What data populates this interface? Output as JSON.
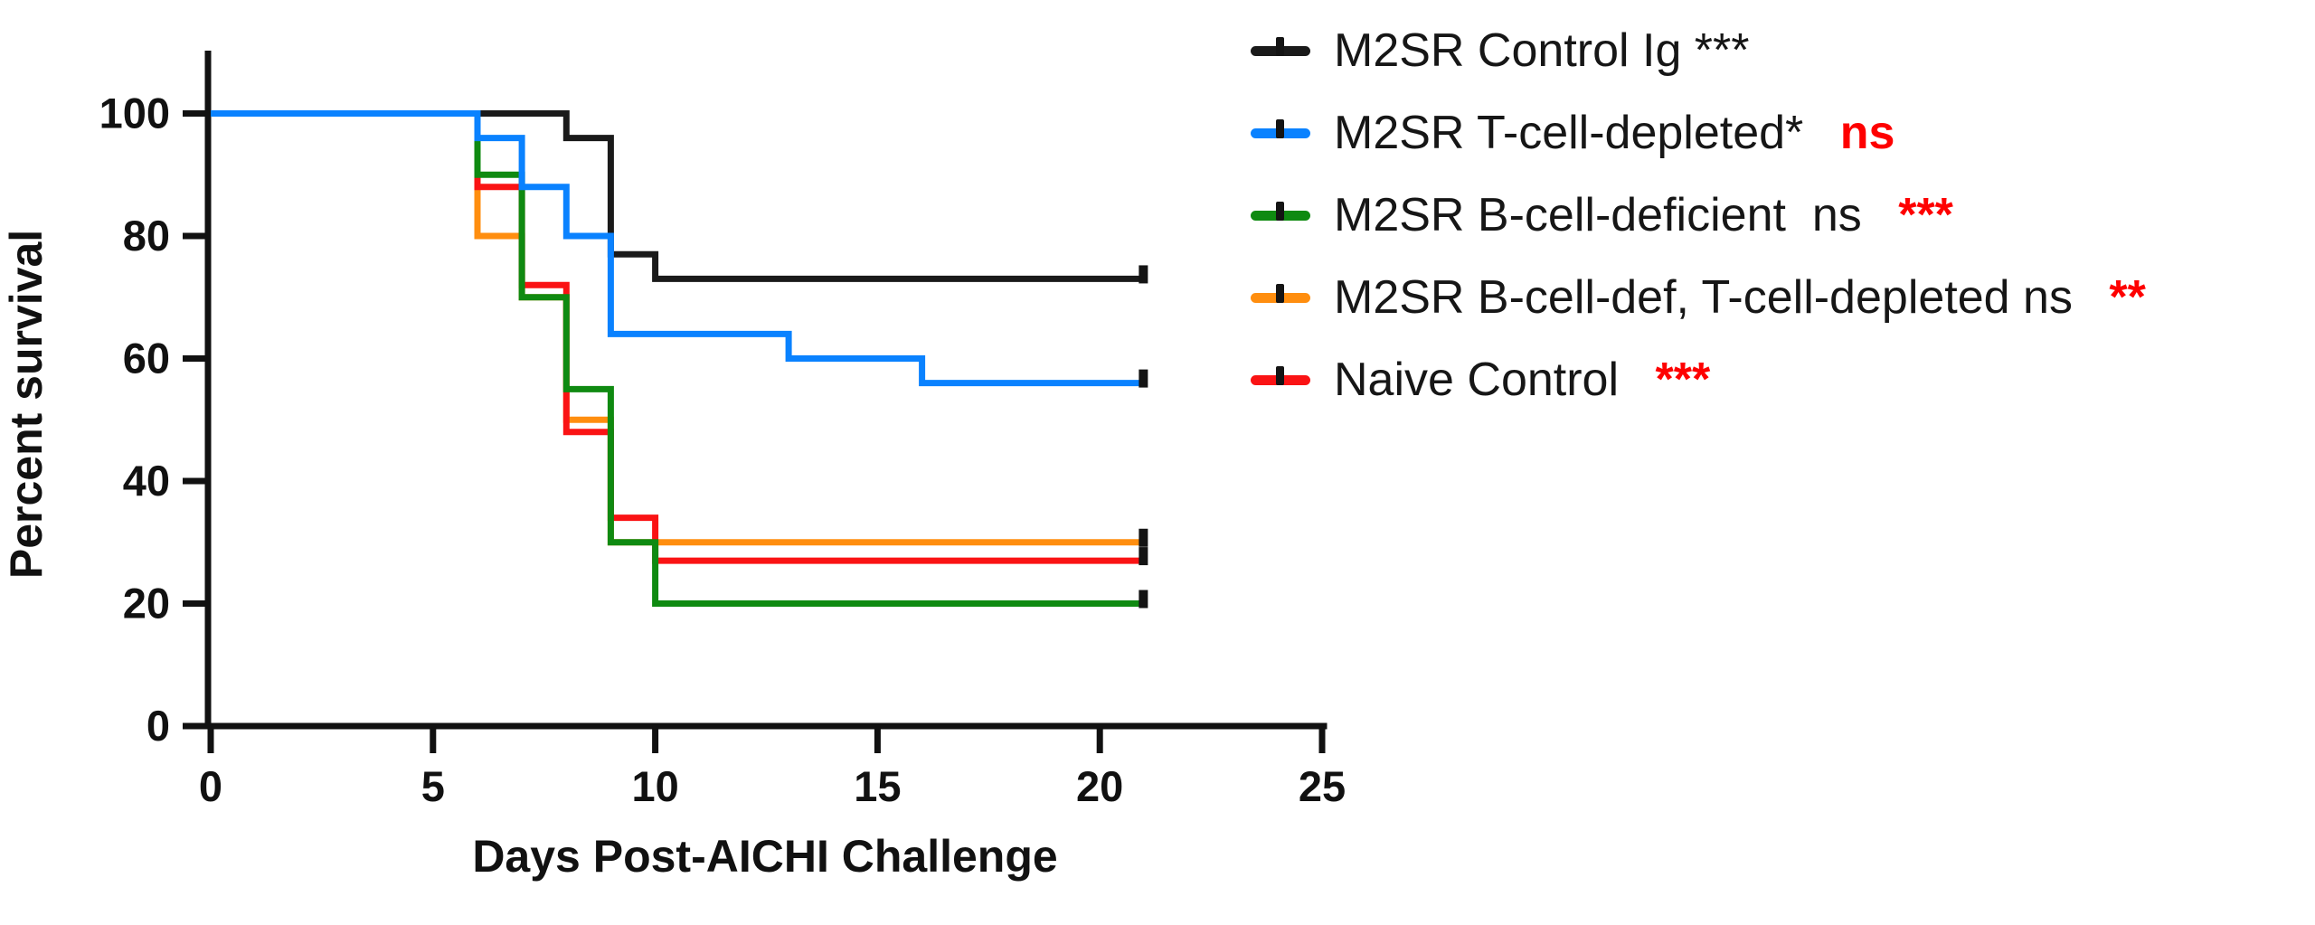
{
  "chart_data": {
    "type": "line",
    "subtype": "kaplan-meier-step-survival",
    "title": "",
    "xlabel": "Days Post-AICHI Challenge",
    "ylabel": "Percent survival",
    "xlim": [
      0,
      25
    ],
    "ylim": [
      0,
      100
    ],
    "xticks": [
      0,
      5,
      10,
      15,
      20,
      25
    ],
    "yticks": [
      0,
      20,
      40,
      60,
      80,
      100
    ],
    "grid": false,
    "legend_position": "top-right",
    "series": [
      {
        "name": "M2SR Control Ig",
        "color": "#1a1a1a",
        "censor_day": 21,
        "points": [
          [
            0,
            100
          ],
          [
            8,
            100
          ],
          [
            8,
            96
          ],
          [
            9,
            96
          ],
          [
            9,
            77
          ],
          [
            10,
            77
          ],
          [
            10,
            73
          ],
          [
            21,
            73
          ]
        ]
      },
      {
        "name": "M2SR T-cell-depleted",
        "color": "#0a82ff",
        "censor_day": 21,
        "points": [
          [
            0,
            100
          ],
          [
            6,
            100
          ],
          [
            6,
            96
          ],
          [
            7,
            96
          ],
          [
            7,
            88
          ],
          [
            8,
            88
          ],
          [
            8,
            80
          ],
          [
            9,
            80
          ],
          [
            9,
            64
          ],
          [
            13,
            64
          ],
          [
            13,
            60
          ],
          [
            16,
            60
          ],
          [
            16,
            56
          ],
          [
            21,
            56
          ]
        ]
      },
      {
        "name": "M2SR B-cell-deficient",
        "color": "#0f8a11",
        "censor_day": 21,
        "points": [
          [
            0,
            100
          ],
          [
            6,
            100
          ],
          [
            6,
            90
          ],
          [
            7,
            90
          ],
          [
            7,
            70
          ],
          [
            8,
            70
          ],
          [
            8,
            55
          ],
          [
            9,
            55
          ],
          [
            9,
            30
          ],
          [
            10,
            30
          ],
          [
            10,
            20
          ],
          [
            21,
            20
          ]
        ]
      },
      {
        "name": "M2SR B-cell-def, T-cell-depleted",
        "color": "#ff8e0f",
        "censor_day": 21,
        "points": [
          [
            0,
            100
          ],
          [
            6,
            100
          ],
          [
            6,
            80
          ],
          [
            7,
            80
          ],
          [
            7,
            70
          ],
          [
            8,
            70
          ],
          [
            8,
            50
          ],
          [
            9,
            50
          ],
          [
            9,
            30
          ],
          [
            21,
            30
          ]
        ]
      },
      {
        "name": "Naive Control",
        "color": "#fa1314",
        "censor_day": 21,
        "points": [
          [
            0,
            100
          ],
          [
            6,
            100
          ],
          [
            6,
            88
          ],
          [
            7,
            88
          ],
          [
            7,
            72
          ],
          [
            8,
            72
          ],
          [
            8,
            48
          ],
          [
            9,
            48
          ],
          [
            9,
            34
          ],
          [
            10,
            34
          ],
          [
            10,
            27
          ],
          [
            21,
            27
          ]
        ]
      }
    ]
  },
  "legend": {
    "significance_color": "#fe0000",
    "items": [
      {
        "text": "M2SR Control Ig ***",
        "suffix": "",
        "color": "#1a1a1a"
      },
      {
        "text": "M2SR T-cell-depleted*",
        "suffix": " ns",
        "color": "#0a82ff"
      },
      {
        "text": "M2SR B-cell-deficient  ns",
        "suffix": " ***",
        "color": "#0f8a11"
      },
      {
        "text": "M2SR B-cell-def, T-cell-depleted ns",
        "suffix": " **",
        "color": "#ff8e0f"
      },
      {
        "text": "Naive Control",
        "suffix": " ***",
        "color": "#fa1314"
      }
    ]
  }
}
